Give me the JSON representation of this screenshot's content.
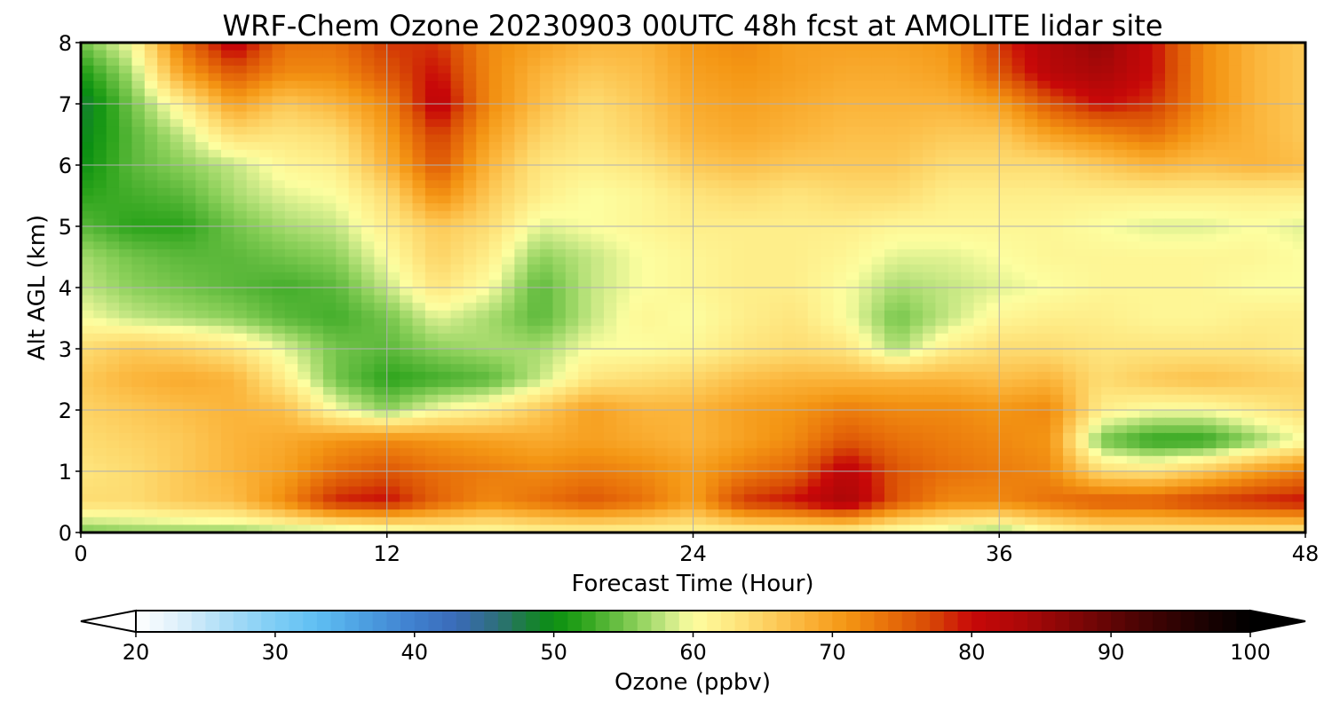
{
  "chart_data": {
    "type": "heatmap",
    "title": "WRF-Chem Ozone  20230903 00UTC 48h fcst at AMOLITE lidar site",
    "xlabel": "Forecast Time (Hour)",
    "ylabel": "Alt AGL (km)",
    "xlim": [
      0,
      48
    ],
    "ylim": [
      0,
      8
    ],
    "xticks": [
      0,
      12,
      24,
      36,
      48
    ],
    "yticks": [
      0,
      1,
      2,
      3,
      4,
      5,
      6,
      7,
      8
    ],
    "grid": true,
    "x": [
      0,
      2,
      4,
      6,
      8,
      10,
      12,
      14,
      16,
      18,
      20,
      22,
      24,
      26,
      28,
      30,
      32,
      34,
      36,
      38,
      40,
      42,
      44,
      46,
      48
    ],
    "y": [
      0,
      0.5,
      1,
      1.5,
      2,
      2.5,
      3,
      3.5,
      4,
      4.5,
      5,
      5.5,
      6,
      6.5,
      7,
      7.5,
      8
    ],
    "z_rows_by_altitude": [
      [
        55,
        56,
        56,
        56,
        57,
        57,
        58,
        60,
        60,
        61,
        61,
        61,
        61,
        61,
        61,
        61,
        59,
        58,
        56,
        60,
        62,
        62,
        62,
        62,
        62
      ],
      [
        64,
        64,
        66,
        67,
        72,
        79,
        80,
        75,
        72,
        74,
        76,
        74,
        70,
        78,
        80,
        84,
        76,
        72,
        72,
        74,
        76,
        76,
        78,
        79,
        80
      ],
      [
        63,
        64,
        66,
        68,
        70,
        74,
        76,
        74,
        73,
        72,
        73,
        72,
        70,
        73,
        75,
        82,
        76,
        74,
        73,
        72,
        64,
        63,
        66,
        70,
        73
      ],
      [
        64,
        65,
        66,
        68,
        69,
        71,
        72,
        71,
        70,
        69,
        70,
        69,
        68,
        70,
        72,
        76,
        74,
        73,
        72,
        71,
        55,
        52,
        52,
        56,
        60
      ],
      [
        65,
        66,
        67,
        68,
        67,
        60,
        56,
        60,
        62,
        66,
        70,
        68,
        68,
        70,
        71,
        73,
        72,
        72,
        71,
        72,
        62,
        60,
        60,
        62,
        64
      ],
      [
        66,
        68,
        69,
        68,
        62,
        55,
        52,
        53,
        54,
        58,
        63,
        64,
        65,
        67,
        68,
        68,
        68,
        68,
        67,
        68,
        64,
        66,
        67,
        66,
        65
      ],
      [
        64,
        66,
        65,
        63,
        59,
        55,
        54,
        56,
        57,
        57,
        60,
        60,
        61,
        63,
        64,
        63,
        57,
        62,
        64,
        64,
        63,
        63,
        63,
        63,
        62
      ],
      [
        60,
        58,
        57,
        56,
        54,
        53,
        55,
        59,
        57,
        54,
        58,
        61,
        60,
        62,
        63,
        60,
        55,
        58,
        61,
        62,
        62,
        61,
        61,
        62,
        62
      ],
      [
        58,
        56,
        55,
        54,
        53,
        54,
        58,
        63,
        60,
        54,
        58,
        60,
        61,
        62,
        62,
        60,
        57,
        58,
        59,
        60,
        61,
        61,
        61,
        60,
        60
      ],
      [
        57,
        55,
        54,
        54,
        55,
        56,
        60,
        65,
        62,
        56,
        58,
        60,
        61,
        62,
        62,
        61,
        59,
        59,
        60,
        61,
        61,
        61,
        61,
        61,
        60
      ],
      [
        54,
        52,
        52,
        55,
        57,
        58,
        62,
        66,
        64,
        59,
        60,
        61,
        62,
        62,
        62,
        62,
        61,
        61,
        61,
        61,
        60,
        59,
        59,
        60,
        59
      ],
      [
        52,
        53,
        54,
        57,
        59,
        60,
        64,
        72,
        66,
        62,
        60,
        61,
        63,
        64,
        63,
        64,
        64,
        62,
        62,
        62,
        62,
        62,
        62,
        62,
        62
      ],
      [
        50,
        54,
        56,
        58,
        61,
        62,
        68,
        76,
        68,
        63,
        62,
        63,
        66,
        67,
        66,
        66,
        66,
        64,
        64,
        64,
        66,
        68,
        67,
        68,
        67
      ],
      [
        49,
        54,
        58,
        64,
        63,
        64,
        70,
        78,
        70,
        65,
        63,
        65,
        68,
        69,
        68,
        67,
        67,
        66,
        66,
        70,
        72,
        74,
        70,
        68,
        66
      ],
      [
        48,
        55,
        62,
        70,
        66,
        68,
        72,
        82,
        72,
        67,
        64,
        66,
        69,
        70,
        69,
        68,
        68,
        68,
        70,
        76,
        80,
        78,
        72,
        68,
        66
      ],
      [
        51,
        57,
        70,
        76,
        72,
        72,
        76,
        80,
        72,
        68,
        66,
        67,
        70,
        71,
        70,
        69,
        69,
        70,
        76,
        82,
        84,
        80,
        72,
        68,
        66
      ],
      [
        55,
        60,
        74,
        82,
        74,
        74,
        78,
        78,
        72,
        70,
        68,
        68,
        71,
        72,
        70,
        70,
        70,
        71,
        78,
        83,
        86,
        80,
        72,
        68,
        66
      ]
    ],
    "colorbar": {
      "label": "Ozone  (ppbv)",
      "min": 20,
      "max": 100,
      "ticks": [
        20,
        30,
        40,
        50,
        60,
        70,
        80,
        90,
        100
      ],
      "extend": "both",
      "orientation": "horizontal",
      "stops": [
        {
          "v": 20,
          "c": "#ffffff"
        },
        {
          "v": 23,
          "c": "#dff1fb"
        },
        {
          "v": 27,
          "c": "#a4daf6"
        },
        {
          "v": 30,
          "c": "#7ecdf5"
        },
        {
          "v": 33,
          "c": "#5fbff2"
        },
        {
          "v": 36,
          "c": "#4ea2e3"
        },
        {
          "v": 40,
          "c": "#3f7fce"
        },
        {
          "v": 43,
          "c": "#3a6ab8"
        },
        {
          "v": 46,
          "c": "#2e6f7a"
        },
        {
          "v": 48,
          "c": "#1b7d3c"
        },
        {
          "v": 50,
          "c": "#0b8f12"
        },
        {
          "v": 52,
          "c": "#2aa31a"
        },
        {
          "v": 54,
          "c": "#5bb83a"
        },
        {
          "v": 56,
          "c": "#8cd05a"
        },
        {
          "v": 58,
          "c": "#c3e682"
        },
        {
          "v": 60,
          "c": "#fdfea0"
        },
        {
          "v": 62,
          "c": "#feee8a"
        },
        {
          "v": 65,
          "c": "#fdd365"
        },
        {
          "v": 68,
          "c": "#fbb43a"
        },
        {
          "v": 71,
          "c": "#f49614"
        },
        {
          "v": 74,
          "c": "#e8700a"
        },
        {
          "v": 77,
          "c": "#d84a05"
        },
        {
          "v": 80,
          "c": "#c80808"
        },
        {
          "v": 84,
          "c": "#a90808"
        },
        {
          "v": 88,
          "c": "#7a0606"
        },
        {
          "v": 92,
          "c": "#4a0404"
        },
        {
          "v": 96,
          "c": "#220202"
        },
        {
          "v": 100,
          "c": "#000000"
        }
      ]
    }
  }
}
